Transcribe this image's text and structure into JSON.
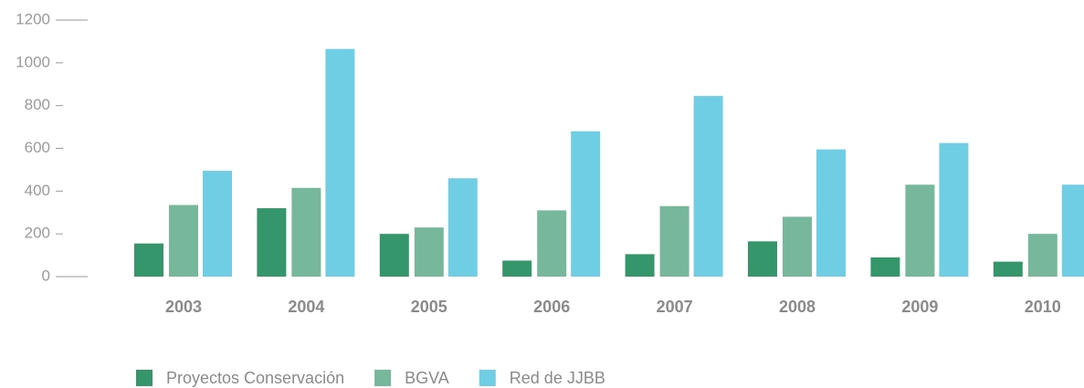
{
  "chart_data": {
    "type": "bar",
    "categories": [
      "2003",
      "2004",
      "2005",
      "2006",
      "2007",
      "2008",
      "2009",
      "2010"
    ],
    "series": [
      {
        "name": "Proyectos Conservación",
        "color": "#36966b",
        "values": [
          155,
          320,
          200,
          75,
          105,
          165,
          90,
          70
        ]
      },
      {
        "name": "BGVA",
        "color": "#77b89d",
        "values": [
          335,
          415,
          230,
          310,
          330,
          280,
          430,
          200
        ]
      },
      {
        "name": "Red de JJBB",
        "color": "#6fcde4",
        "values": [
          495,
          1065,
          460,
          680,
          845,
          595,
          625,
          430
        ]
      }
    ],
    "ylim": [
      0,
      1200
    ],
    "yticks": [
      0,
      200,
      400,
      600,
      800,
      1000,
      1200
    ],
    "grid": false,
    "legend": "bottom"
  }
}
